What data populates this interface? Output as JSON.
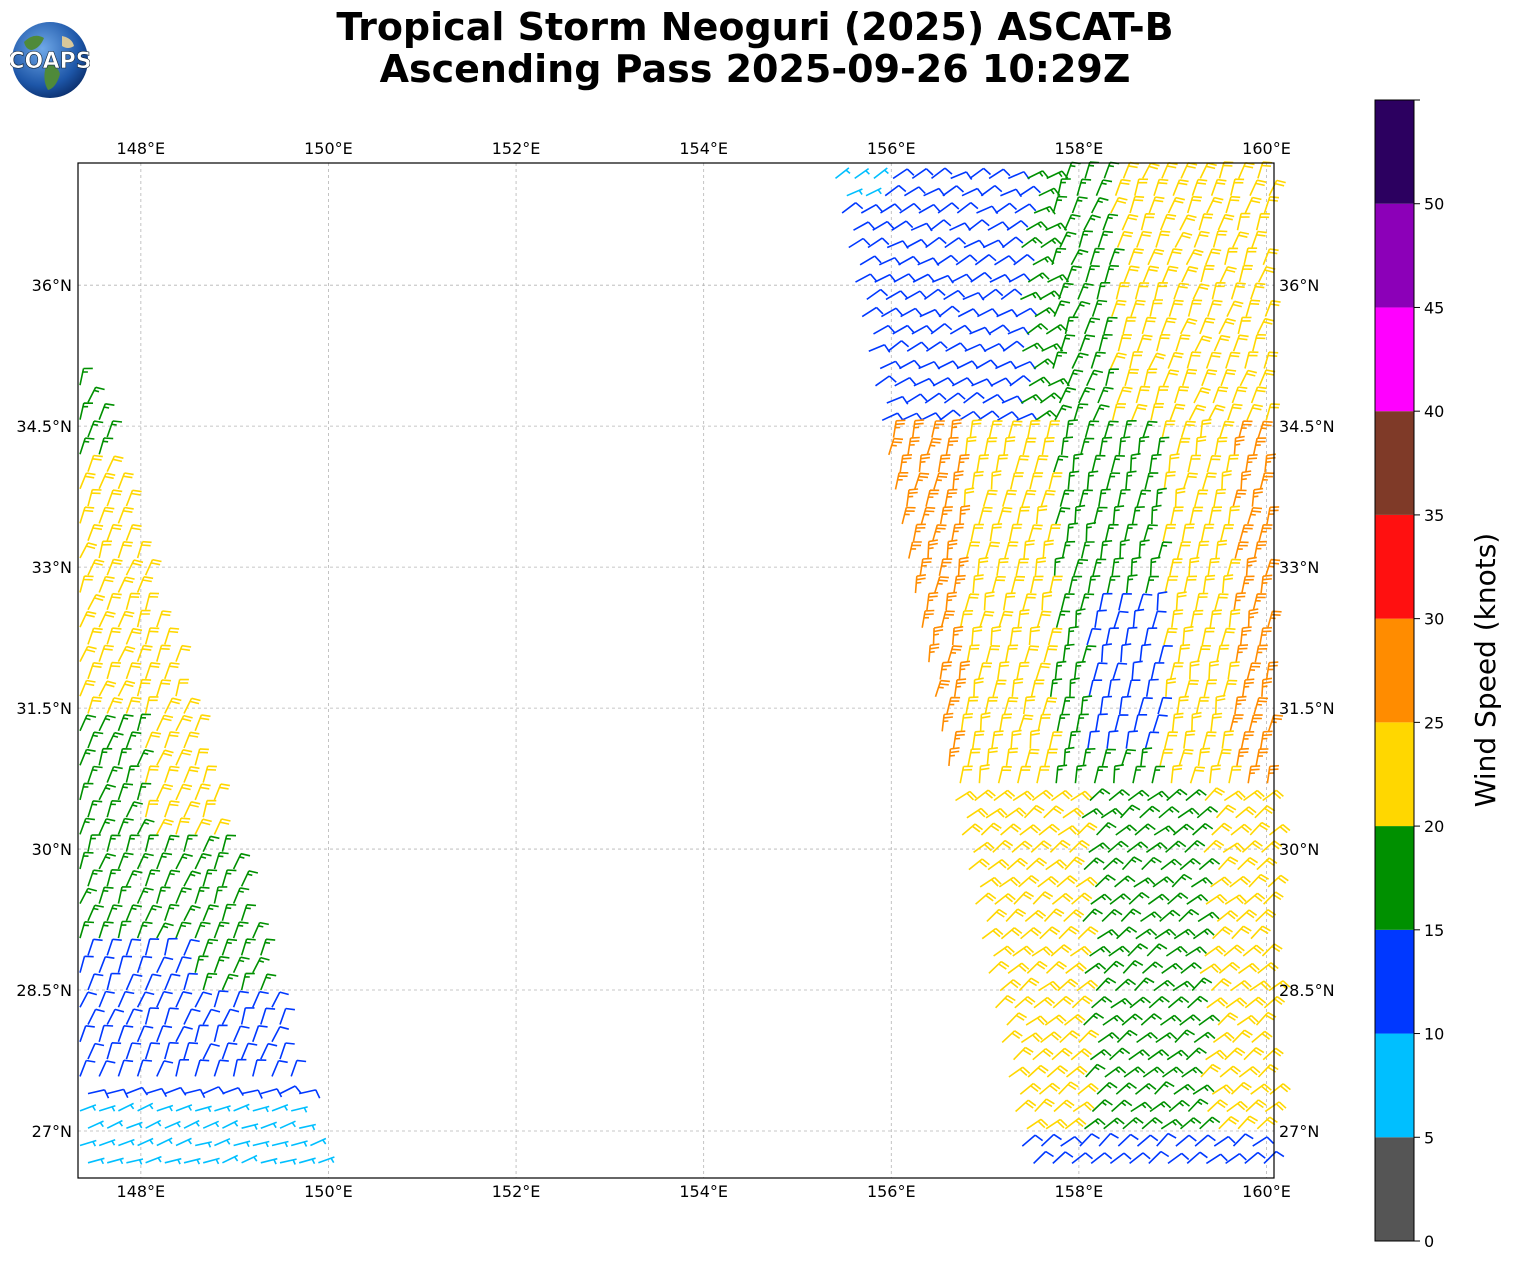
{
  "title": {
    "line1": "Tropical Storm Neoguri (2025) ASCAT-B",
    "line2": "Ascending Pass 2025-09-26 10:29Z"
  },
  "logo": {
    "text": "COAPS"
  },
  "map": {
    "lon_range": [
      147.33,
      160.08
    ],
    "lat_range": [
      26.5,
      37.3
    ],
    "lon_ticks": [
      148,
      150,
      152,
      154,
      156,
      158,
      160
    ],
    "lon_labels": [
      "148°E",
      "150°E",
      "152°E",
      "154°E",
      "156°E",
      "158°E",
      "160°E"
    ],
    "lat_ticks": [
      27,
      28.5,
      30,
      31.5,
      33,
      34.5,
      36
    ],
    "lat_labels": [
      "27°N",
      "28.5°N",
      "30°N",
      "31.5°N",
      "33°N",
      "34.5°N",
      "36°N"
    ],
    "grid": true,
    "swaths": [
      {
        "name": "west",
        "top": {
          "lat": 35.0,
          "lon_w": 147.33,
          "lon_e": 147.55
        },
        "bottom": {
          "lat": 26.6,
          "lon_w": 147.33,
          "lon_e": 150.0
        }
      },
      {
        "name": "east",
        "top": {
          "lat": 37.2,
          "lon_w": 155.35,
          "lon_e": 160.08
        },
        "bottom": {
          "lat": 26.6,
          "lon_w": 157.4,
          "lon_e": 160.08
        }
      }
    ]
  },
  "colorbar": {
    "label": "Wind Speed (knots)",
    "ticks": [
      "0",
      "5",
      "10",
      "15",
      "20",
      "25",
      "30",
      "35",
      "40",
      "45",
      "50"
    ],
    "bins": [
      {
        "min": 0,
        "max": 5,
        "color": "#555555"
      },
      {
        "min": 5,
        "max": 10,
        "color": "#00bfff"
      },
      {
        "min": 10,
        "max": 15,
        "color": "#0038ff"
      },
      {
        "min": 15,
        "max": 20,
        "color": "#009000"
      },
      {
        "min": 20,
        "max": 25,
        "color": "#ffd700"
      },
      {
        "min": 25,
        "max": 30,
        "color": "#ff8c00"
      },
      {
        "min": 30,
        "max": 35,
        "color": "#ff1010"
      },
      {
        "min": 35,
        "max": 40,
        "color": "#7f3a28"
      },
      {
        "min": 40,
        "max": 45,
        "color": "#ff00ff"
      },
      {
        "min": 45,
        "max": 50,
        "color": "#8c00b8"
      },
      {
        "min": 50,
        "max": 55,
        "color": "#2c0060"
      }
    ]
  }
}
